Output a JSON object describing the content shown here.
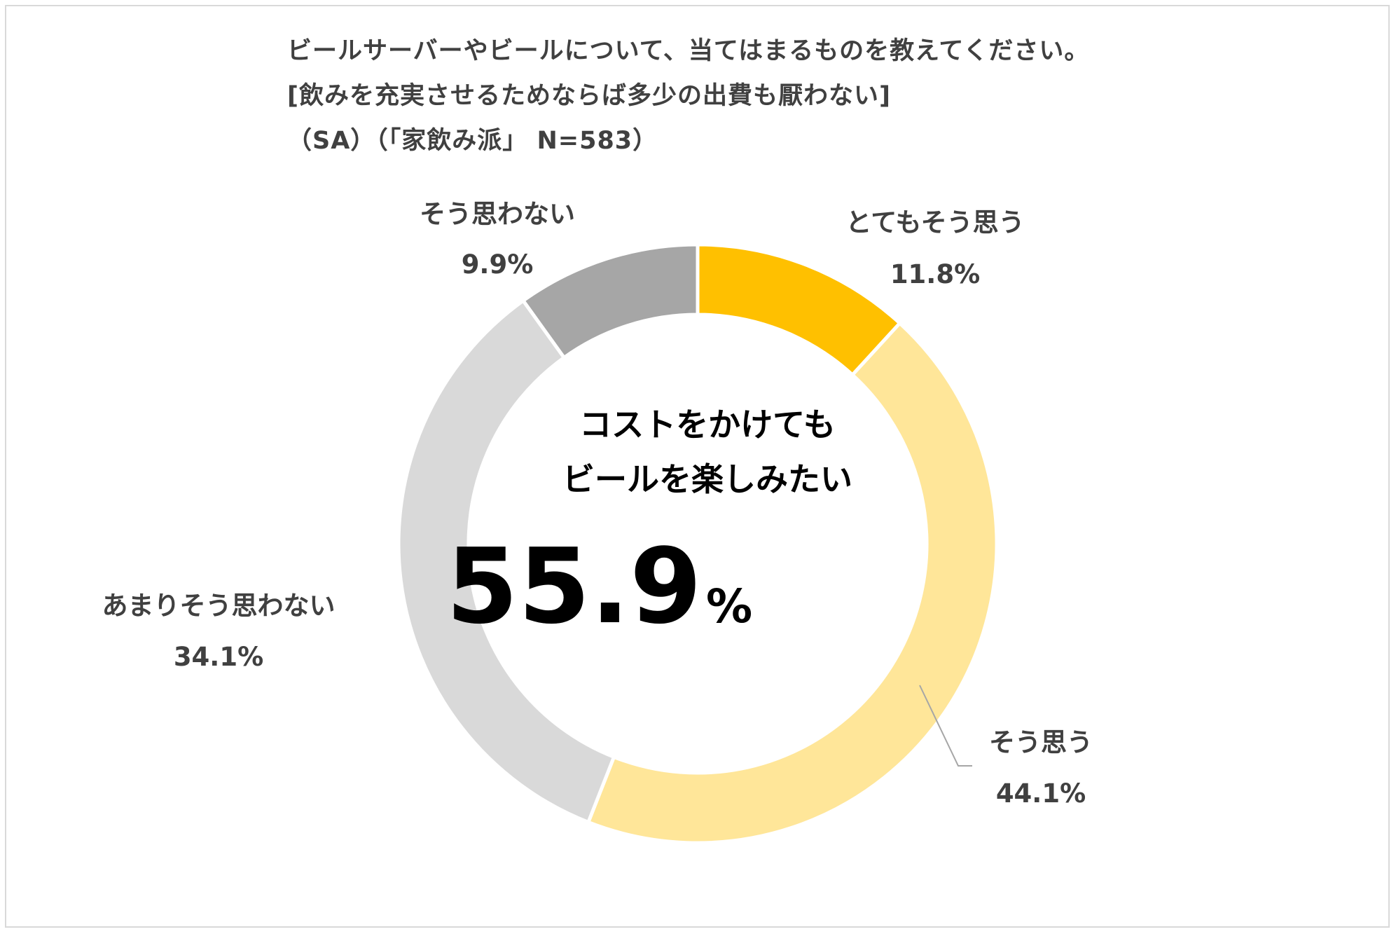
{
  "chart_data": {
    "type": "pie",
    "variant": "donut",
    "title_lines": [
      "ビールサーバーやビールについて、当てはまるものを教えてください。",
      "[飲みを充実させるためならば多少の出費も厭わない]",
      "（SA）（「家飲み派」 N=583）"
    ],
    "slices": [
      {
        "label": "とてもそう思う",
        "value": 11.8,
        "value_label": "11.8%",
        "color": "#FFC000"
      },
      {
        "label": "そう思う",
        "value": 44.1,
        "value_label": "44.1%",
        "color": "#FFE699"
      },
      {
        "label": "あまりそう思わない",
        "value": 34.1,
        "value_label": "34.1%",
        "color": "#D9D9D9"
      },
      {
        "label": "そう思わない",
        "value": 9.9,
        "value_label": "9.9%",
        "color": "#A6A6A6"
      }
    ],
    "center": {
      "line1": "コストをかけても",
      "line2": "ビールを楽しみたい",
      "value": "55.9",
      "unit": "%"
    },
    "legend": "none"
  }
}
